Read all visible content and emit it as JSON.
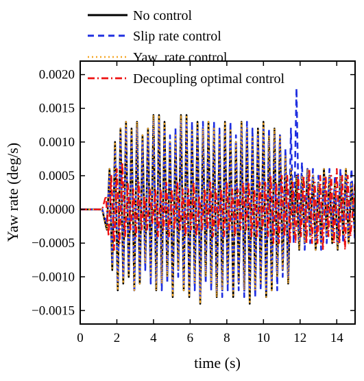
{
  "chart_data": {
    "type": "line",
    "title": "",
    "xlabel": "time (s)",
    "ylabel": "Yaw rate (deg/s)",
    "xlim": [
      0,
      15
    ],
    "ylim": [
      -0.0017,
      0.0022
    ],
    "x_ticks": [
      0,
      2,
      4,
      6,
      8,
      10,
      12,
      14
    ],
    "y_ticks": [
      -0.0015,
      -0.001,
      -0.0005,
      0.0,
      0.0005,
      0.001,
      0.0015,
      0.002
    ],
    "x_tick_labels": [
      "0",
      "2",
      "4",
      "6",
      "8",
      "10",
      "12",
      "14"
    ],
    "y_tick_labels": [
      "−0.0015",
      "−0.0010",
      "−0.0005",
      "0.0000",
      "0.0005",
      "0.0010",
      "0.0015",
      "0.0020"
    ],
    "grid": false,
    "legend_position": "top",
    "series": [
      {
        "name": "No control",
        "color": "#000000",
        "style": "solid",
        "x": [
          0,
          1.2,
          1.45,
          1.6,
          1.75,
          1.9,
          2.05,
          2.2,
          2.35,
          2.5,
          2.65,
          2.8,
          2.95,
          3.1,
          3.25,
          3.4,
          3.55,
          3.7,
          3.85,
          4.0,
          4.15,
          4.3,
          4.45,
          4.6,
          4.75,
          4.9,
          5.05,
          5.2,
          5.35,
          5.5,
          5.65,
          5.8,
          5.95,
          6.1,
          6.25,
          6.4,
          6.55,
          6.7,
          6.85,
          7.0,
          7.15,
          7.3,
          7.45,
          7.6,
          7.75,
          7.9,
          8.05,
          8.2,
          8.35,
          8.5,
          8.65,
          8.8,
          8.95,
          9.1,
          9.25,
          9.4,
          9.55,
          9.7,
          9.85,
          10.0,
          10.15,
          10.3,
          10.45,
          10.6,
          10.75,
          10.9,
          11.05,
          11.2,
          11.35,
          11.5,
          11.65,
          11.8,
          11.95,
          12.1,
          12.25,
          12.4,
          12.55,
          12.7,
          12.85,
          13.0,
          13.15,
          13.3,
          13.45,
          13.6,
          13.75,
          13.9,
          14.05,
          14.2,
          14.35,
          14.5,
          14.65,
          14.8,
          15.0
        ],
        "y": [
          0,
          0,
          -0.0003,
          0.0006,
          -0.0009,
          0.001,
          -0.0012,
          0.0012,
          -0.0011,
          0.0013,
          -0.001,
          0.0012,
          -0.0012,
          0.0013,
          -0.0011,
          0.0011,
          -0.0008,
          0.0012,
          -0.001,
          0.0014,
          -0.0012,
          0.0014,
          -0.0011,
          0.0013,
          -0.001,
          0.001,
          -0.0013,
          0.0011,
          -0.0009,
          0.0014,
          -0.0012,
          0.0014,
          -0.0013,
          0.0012,
          -0.0011,
          0.0013,
          -0.0014,
          0.0012,
          -0.001,
          0.0013,
          -0.0011,
          0.0012,
          -0.0013,
          0.0011,
          -0.0012,
          0.0013,
          -0.0011,
          0.0012,
          -0.0013,
          0.001,
          -0.0011,
          0.0013,
          -0.0012,
          0.0012,
          -0.0014,
          0.0011,
          -0.0012,
          0.0012,
          -0.0011,
          0.0013,
          -0.0013,
          0.0011,
          -0.0012,
          0.0012,
          -0.001,
          0.0011,
          -0.0009,
          0.0008,
          -0.0011,
          0.0006,
          -0.0004,
          0.0005,
          -0.0006,
          0.0005,
          -0.0005,
          0.0006,
          -0.0004,
          0.0005,
          -0.0006,
          0.0004,
          -0.0005,
          0.0006,
          -0.0004,
          0.0005,
          -0.0005,
          0.0004,
          -0.0006,
          0.0005,
          -0.0004,
          0.0006,
          -0.0005,
          0.0004,
          -0.0004
        ]
      },
      {
        "name": "Slip rate control",
        "color": "#1f2fe0",
        "style": "dashed",
        "x": [
          0,
          1.2,
          1.45,
          1.6,
          1.75,
          1.9,
          2.05,
          2.2,
          2.35,
          2.5,
          2.65,
          2.8,
          2.95,
          3.1,
          3.25,
          3.4,
          3.55,
          3.7,
          3.85,
          4.0,
          4.15,
          4.3,
          4.45,
          4.6,
          4.75,
          4.9,
          5.05,
          5.2,
          5.35,
          5.5,
          5.65,
          5.8,
          5.95,
          6.1,
          6.25,
          6.4,
          6.55,
          6.7,
          6.85,
          7.0,
          7.15,
          7.3,
          7.45,
          7.6,
          7.75,
          7.9,
          8.05,
          8.2,
          8.35,
          8.5,
          8.65,
          8.8,
          8.95,
          9.1,
          9.25,
          9.4,
          9.55,
          9.7,
          9.85,
          10.0,
          10.15,
          10.3,
          10.45,
          10.6,
          10.75,
          10.9,
          11.05,
          11.2,
          11.35,
          11.5,
          11.65,
          11.8,
          11.95,
          12.1,
          12.25,
          12.4,
          12.55,
          12.7,
          12.85,
          13.0,
          13.15,
          13.3,
          13.45,
          13.6,
          13.75,
          13.9,
          14.05,
          14.2,
          14.35,
          14.5,
          14.65,
          14.8,
          15.0
        ],
        "y": [
          0,
          0,
          -0.0002,
          0.0005,
          -0.0008,
          0.0009,
          -0.0011,
          0.0011,
          -0.001,
          0.0012,
          -0.0009,
          0.0011,
          -0.0012,
          0.0012,
          -0.001,
          0.001,
          -0.0009,
          0.0011,
          -0.0011,
          0.0013,
          -0.0011,
          0.0013,
          -0.0012,
          0.0012,
          -0.0011,
          0.0011,
          -0.0012,
          0.0012,
          -0.001,
          0.0013,
          -0.0011,
          0.0013,
          -0.0012,
          0.0013,
          -0.0012,
          0.0012,
          -0.0013,
          0.0013,
          -0.0011,
          0.0012,
          -0.0012,
          0.0013,
          -0.0012,
          0.0012,
          -0.0013,
          0.0012,
          -0.0012,
          0.0013,
          -0.0012,
          0.0011,
          -0.0012,
          0.0012,
          -0.0013,
          0.0013,
          -0.0012,
          0.0012,
          -0.0013,
          0.0011,
          -0.0012,
          0.0012,
          -0.0012,
          0.0012,
          -0.0011,
          0.0011,
          -0.0012,
          0.0011,
          -0.001,
          0.0009,
          -0.001,
          0.0012,
          -0.0005,
          0.0018,
          -0.0005,
          0.0007,
          -0.0006,
          0.0006,
          -0.0005,
          0.0006,
          -0.0005,
          0.0005,
          -0.0006,
          0.0005,
          -0.0005,
          0.0006,
          -0.0004,
          0.0005,
          -0.0005,
          0.0006,
          -0.0005,
          0.0005,
          -0.0004,
          0.0006,
          -0.0005
        ]
      },
      {
        "name": "Yaw  rate control",
        "color": "#f5a623",
        "style": "dotted",
        "x": [
          0,
          1.2,
          1.45,
          1.6,
          1.75,
          1.9,
          2.05,
          2.2,
          2.35,
          2.5,
          2.65,
          2.8,
          2.95,
          3.1,
          3.25,
          3.4,
          3.55,
          3.7,
          3.85,
          4.0,
          4.15,
          4.3,
          4.45,
          4.6,
          4.75,
          4.9,
          5.05,
          5.2,
          5.35,
          5.5,
          5.65,
          5.8,
          5.95,
          6.1,
          6.25,
          6.4,
          6.55,
          6.7,
          6.85,
          7.0,
          7.15,
          7.3,
          7.45,
          7.6,
          7.75,
          7.9,
          8.05,
          8.2,
          8.35,
          8.5,
          8.65,
          8.8,
          8.95,
          9.1,
          9.25,
          9.4,
          9.55,
          9.7,
          9.85,
          10.0,
          10.15,
          10.3,
          10.45,
          10.6,
          10.75,
          10.9,
          11.05,
          11.2,
          11.35,
          11.5,
          11.65,
          11.8,
          11.95,
          12.1,
          12.25,
          12.4,
          12.55,
          12.7,
          12.85,
          13.0,
          13.15,
          13.3,
          13.45,
          13.6,
          13.75,
          13.9,
          14.05,
          14.2,
          14.35,
          14.5,
          14.65,
          14.8,
          15.0
        ],
        "y": [
          0,
          0,
          -0.0003,
          0.0006,
          -0.0009,
          0.001,
          -0.0012,
          0.0012,
          -0.0011,
          0.0013,
          -0.001,
          0.0012,
          -0.0012,
          0.0013,
          -0.0011,
          0.0011,
          -0.0008,
          0.0012,
          -0.001,
          0.0014,
          -0.0012,
          0.0014,
          -0.0011,
          0.0013,
          -0.001,
          0.001,
          -0.0013,
          0.0011,
          -0.0009,
          0.0014,
          -0.0012,
          0.0014,
          -0.0013,
          0.0012,
          -0.0011,
          0.0013,
          -0.0014,
          0.0012,
          -0.001,
          0.0013,
          -0.0011,
          0.0012,
          -0.0013,
          0.0011,
          -0.0012,
          0.0013,
          -0.0011,
          0.0012,
          -0.0013,
          0.001,
          -0.0011,
          0.0013,
          -0.0012,
          0.0012,
          -0.0014,
          0.0011,
          -0.0012,
          0.0012,
          -0.0011,
          0.0013,
          -0.0013,
          0.0011,
          -0.0012,
          0.0012,
          -0.001,
          0.0011,
          -0.0009,
          0.0008,
          -0.0011,
          0.0006,
          -0.0004,
          0.0005,
          -0.0006,
          0.0005,
          -0.0005,
          0.0006,
          -0.0004,
          0.0005,
          -0.0006,
          0.0004,
          -0.0005,
          0.0006,
          -0.0004,
          0.0005,
          -0.0005,
          0.0004,
          -0.0006,
          0.0005,
          -0.0004,
          0.0006,
          -0.0005,
          0.0004,
          -0.0004
        ]
      },
      {
        "name": "Decoupling optimal control",
        "color": "#ee1111",
        "style": "dashdot",
        "x": [
          0,
          1.2,
          1.4,
          1.55,
          1.7,
          1.85,
          2.0,
          2.15,
          2.3,
          2.45,
          2.6,
          2.75,
          2.9,
          3.05,
          3.2,
          3.35,
          3.5,
          3.65,
          3.8,
          3.95,
          4.1,
          4.25,
          4.4,
          4.55,
          4.7,
          4.85,
          5.0,
          5.15,
          5.3,
          5.45,
          5.6,
          5.75,
          5.9,
          6.05,
          6.2,
          6.35,
          6.5,
          6.65,
          6.8,
          6.95,
          7.1,
          7.25,
          7.4,
          7.55,
          7.7,
          7.85,
          8.0,
          8.15,
          8.3,
          8.45,
          8.6,
          8.75,
          8.9,
          9.05,
          9.2,
          9.35,
          9.5,
          9.65,
          9.8,
          9.95,
          10.1,
          10.25,
          10.4,
          10.55,
          10.7,
          10.85,
          11.0,
          11.15,
          11.3,
          11.45,
          11.6,
          11.75,
          11.9,
          12.05,
          12.2,
          12.35,
          12.5,
          12.65,
          12.8,
          12.95,
          13.1,
          13.25,
          13.4,
          13.55,
          13.7,
          13.85,
          14.0,
          14.15,
          14.3,
          14.45,
          14.6,
          14.75,
          15.0
        ],
        "y": [
          0,
          0,
          0.0002,
          -0.0004,
          0.0005,
          -0.0006,
          0.0006,
          -0.0005,
          0.0007,
          -0.0004,
          0.0004,
          -0.0003,
          0.0003,
          -0.0004,
          0.0004,
          -0.0003,
          0.0002,
          -0.0003,
          0.0003,
          -0.0002,
          0.0003,
          -0.0004,
          0.0003,
          -0.0003,
          0.0004,
          -0.0004,
          0.0003,
          -0.0003,
          0.0004,
          -0.0003,
          0.0003,
          -0.0004,
          0.0003,
          -0.0003,
          0.0004,
          -0.0004,
          0.0002,
          -0.0003,
          0.0003,
          -0.0003,
          0.0004,
          -0.0004,
          0.0003,
          -0.0003,
          0.0003,
          -0.0004,
          0.0004,
          -0.0003,
          0.0003,
          -0.0004,
          0.0003,
          -0.0003,
          0.0004,
          -0.0003,
          0.0004,
          -0.0004,
          0.0003,
          -0.0004,
          0.0004,
          -0.0003,
          0.0004,
          -0.0004,
          0.0005,
          -0.0005,
          0.0004,
          -0.0005,
          0.0005,
          -0.0004,
          0.0005,
          -0.0005,
          0.0004,
          -0.0005,
          0.0005,
          -0.0004,
          0.0005,
          -0.0005,
          0.0006,
          -0.0005,
          0.0004,
          -0.0005,
          0.0005,
          -0.0006,
          0.0005,
          -0.0004,
          0.0005,
          -0.0005,
          0.0006,
          -0.0005,
          0.0005,
          -0.0006,
          0.0005,
          -0.0004,
          0.0004
        ]
      }
    ]
  }
}
